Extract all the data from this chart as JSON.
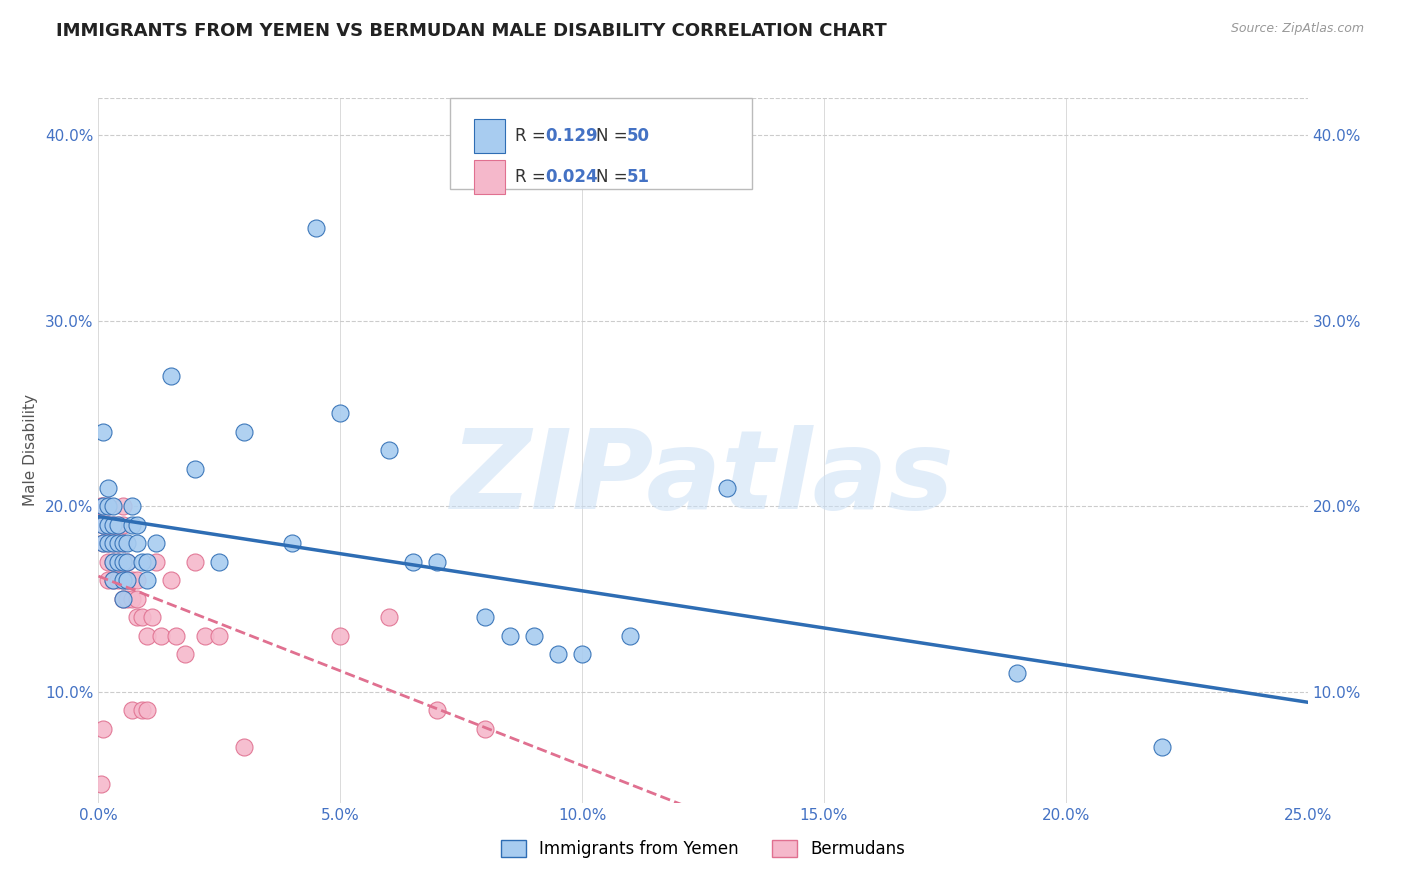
{
  "title": "IMMIGRANTS FROM YEMEN VS BERMUDAN MALE DISABILITY CORRELATION CHART",
  "source_text": "Source: ZipAtlas.com",
  "ylabel": "Male Disability",
  "xlim": [
    0.0,
    0.25
  ],
  "ylim": [
    0.04,
    0.42
  ],
  "xticks": [
    0.0,
    0.05,
    0.1,
    0.15,
    0.2,
    0.25
  ],
  "yticks": [
    0.1,
    0.2,
    0.3,
    0.4
  ],
  "ytick_labels": [
    "10.0%",
    "20.0%",
    "30.0%",
    "40.0%"
  ],
  "xtick_labels": [
    "0.0%",
    "5.0%",
    "10.0%",
    "15.0%",
    "20.0%",
    "25.0%"
  ],
  "legend_labels": [
    "Immigrants from Yemen",
    "Bermudans"
  ],
  "R_blue": 0.129,
  "N_blue": 50,
  "R_pink": 0.024,
  "N_pink": 51,
  "blue_color": "#A8CCF0",
  "pink_color": "#F5B8CB",
  "blue_line_color": "#2E6DB4",
  "pink_line_color": "#E07090",
  "watermark": "ZIPatlas",
  "watermark_color": "#CADFF5",
  "background_color": "#FFFFFF",
  "grid_color": "#CCCCCC",
  "title_fontsize": 13,
  "axis_label_fontsize": 11,
  "tick_fontsize": 11,
  "blue_x": [
    0.001,
    0.001,
    0.001,
    0.001,
    0.002,
    0.002,
    0.002,
    0.002,
    0.003,
    0.003,
    0.003,
    0.003,
    0.003,
    0.004,
    0.004,
    0.004,
    0.005,
    0.005,
    0.005,
    0.005,
    0.006,
    0.006,
    0.006,
    0.007,
    0.007,
    0.008,
    0.008,
    0.009,
    0.01,
    0.01,
    0.012,
    0.015,
    0.02,
    0.025,
    0.03,
    0.04,
    0.045,
    0.05,
    0.06,
    0.065,
    0.07,
    0.08,
    0.085,
    0.09,
    0.095,
    0.1,
    0.11,
    0.13,
    0.19,
    0.22
  ],
  "blue_y": [
    0.24,
    0.2,
    0.19,
    0.18,
    0.21,
    0.2,
    0.19,
    0.18,
    0.2,
    0.19,
    0.18,
    0.17,
    0.16,
    0.19,
    0.18,
    0.17,
    0.18,
    0.17,
    0.16,
    0.15,
    0.18,
    0.17,
    0.16,
    0.2,
    0.19,
    0.19,
    0.18,
    0.17,
    0.17,
    0.16,
    0.18,
    0.27,
    0.22,
    0.17,
    0.24,
    0.18,
    0.35,
    0.25,
    0.23,
    0.17,
    0.17,
    0.14,
    0.13,
    0.13,
    0.12,
    0.12,
    0.13,
    0.21,
    0.11,
    0.07
  ],
  "pink_x": [
    0.0005,
    0.001,
    0.001,
    0.001,
    0.001,
    0.002,
    0.002,
    0.002,
    0.002,
    0.002,
    0.003,
    0.003,
    0.003,
    0.003,
    0.004,
    0.004,
    0.004,
    0.004,
    0.005,
    0.005,
    0.005,
    0.005,
    0.005,
    0.006,
    0.006,
    0.006,
    0.007,
    0.007,
    0.007,
    0.008,
    0.008,
    0.008,
    0.009,
    0.009,
    0.01,
    0.01,
    0.011,
    0.012,
    0.013,
    0.015,
    0.016,
    0.018,
    0.02,
    0.022,
    0.025,
    0.03,
    0.05,
    0.06,
    0.07,
    0.08,
    0.0005
  ],
  "pink_y": [
    0.2,
    0.2,
    0.19,
    0.18,
    0.08,
    0.2,
    0.19,
    0.18,
    0.17,
    0.16,
    0.19,
    0.18,
    0.17,
    0.16,
    0.19,
    0.18,
    0.17,
    0.16,
    0.2,
    0.19,
    0.18,
    0.16,
    0.15,
    0.17,
    0.16,
    0.15,
    0.16,
    0.15,
    0.09,
    0.16,
    0.15,
    0.14,
    0.14,
    0.09,
    0.13,
    0.09,
    0.14,
    0.17,
    0.13,
    0.16,
    0.13,
    0.12,
    0.17,
    0.13,
    0.13,
    0.07,
    0.13,
    0.14,
    0.09,
    0.08,
    0.05
  ]
}
